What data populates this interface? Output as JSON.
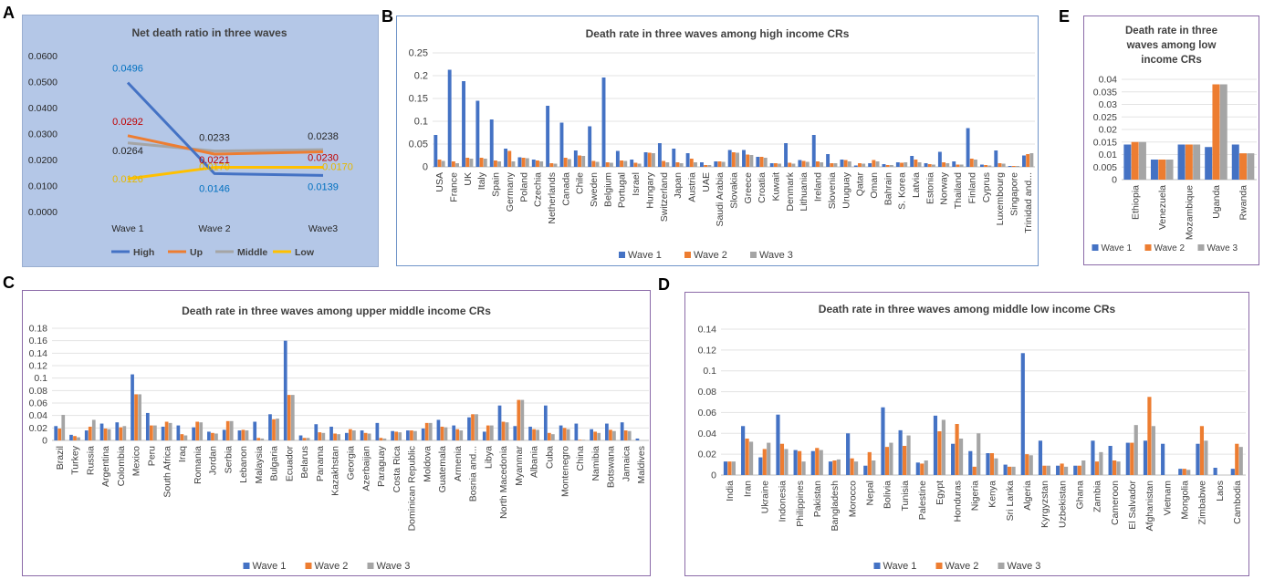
{
  "panels": {
    "A": {
      "letter": "A"
    },
    "B": {
      "letter": "B"
    },
    "C": {
      "letter": "C"
    },
    "D": {
      "letter": "D"
    },
    "E": {
      "letter": "E"
    }
  },
  "colors": {
    "wave1": "#4472C4",
    "wave2": "#ED7D31",
    "wave3": "#A5A5A5",
    "high": "#4472C4",
    "up": "#ED7D31",
    "middle": "#A5A5A5",
    "low": "#FFC000",
    "panelA_bg": "#B4C7E7",
    "label_blue": "#0070C0",
    "label_red": "#C00000",
    "label_black": "#262626",
    "label_gold": "#E5B800"
  },
  "chart_data": [
    {
      "id": "A",
      "type": "line",
      "title": "Net death ratio in three waves",
      "categories": [
        "Wave 1",
        "Wave 2",
        "Wave3"
      ],
      "ylim": [
        0,
        0.06
      ],
      "yticks": [
        "0.0000",
        "0.0100",
        "0.0200",
        "0.0300",
        "0.0400",
        "0.0500",
        "0.0600"
      ],
      "legend_position": "bottom",
      "series": [
        {
          "name": "High",
          "values": [
            0.0496,
            0.0146,
            0.0139
          ],
          "labels": [
            "0.0496",
            "0.0146",
            "0.0139"
          ]
        },
        {
          "name": "Up",
          "values": [
            0.0292,
            0.0221,
            0.023
          ],
          "labels": [
            "0.0292",
            "0.0221",
            "0.0230"
          ]
        },
        {
          "name": "Middle",
          "values": [
            0.0264,
            0.0233,
            0.0238
          ],
          "labels": [
            "0.0264",
            "0.0233",
            "0.0238"
          ]
        },
        {
          "name": "Low",
          "values": [
            0.0126,
            0.017,
            0.017
          ],
          "labels": [
            "0.0126",
            "0.0170",
            "0.0170"
          ]
        }
      ]
    },
    {
      "id": "B",
      "type": "bar",
      "title": "Death rate in three waves among high income CRs",
      "ylim": [
        0,
        0.25
      ],
      "yticks": [
        "0",
        "0.05",
        "0.1",
        "0.15",
        "0.2",
        "0.25"
      ],
      "legend_position": "bottom",
      "categories": [
        "USA",
        "France",
        "UK",
        "Italy",
        "Spain",
        "Germany",
        "Poland",
        "Czechia",
        "Netherlands",
        "Canada",
        "Chile",
        "Sweden",
        "Belgium",
        "Portugal",
        "Israel",
        "Hungary",
        "Switzerland",
        "Japan",
        "Austria",
        "UAE",
        "Saudi Arabia",
        "Slovakia",
        "Greece",
        "Croatia",
        "Kuwait",
        "Denmark",
        "Lithuania",
        "Ireland",
        "Slovenia",
        "Uruguay",
        "Qatar",
        "Oman",
        "Bahrain",
        "S. Korea",
        "Latvia",
        "Estonia",
        "Norway",
        "Thailand",
        "Finland",
        "Cyprus",
        "Luxembourg",
        "Singapore",
        "Trinidad and..."
      ],
      "series": [
        {
          "name": "Wave 1",
          "values": [
            0.07,
            0.213,
            0.188,
            0.145,
            0.104,
            0.04,
            0.021,
            0.016,
            0.134,
            0.097,
            0.036,
            0.089,
            0.196,
            0.035,
            0.016,
            0.032,
            0.052,
            0.04,
            0.03,
            0.01,
            0.012,
            0.037,
            0.037,
            0.022,
            0.008,
            0.052,
            0.015,
            0.07,
            0.028,
            0.016,
            0.003,
            0.008,
            0.006,
            0.01,
            0.024,
            0.008,
            0.033,
            0.012,
            0.085,
            0.005,
            0.036,
            0.002,
            0.025
          ]
        },
        {
          "name": "Wave 2",
          "values": [
            0.016,
            0.012,
            0.02,
            0.02,
            0.014,
            0.035,
            0.02,
            0.014,
            0.008,
            0.02,
            0.025,
            0.013,
            0.01,
            0.014,
            0.009,
            0.031,
            0.013,
            0.01,
            0.018,
            0.004,
            0.012,
            0.032,
            0.027,
            0.022,
            0.008,
            0.009,
            0.013,
            0.012,
            0.008,
            0.015,
            0.008,
            0.015,
            0.004,
            0.009,
            0.016,
            0.006,
            0.01,
            0.005,
            0.018,
            0.004,
            0.008,
            0.002,
            0.028
          ]
        },
        {
          "name": "Wave 3",
          "values": [
            0.013,
            0.008,
            0.018,
            0.018,
            0.012,
            0.012,
            0.019,
            0.012,
            0.007,
            0.017,
            0.024,
            0.011,
            0.009,
            0.013,
            0.007,
            0.03,
            0.01,
            0.008,
            0.01,
            0.004,
            0.011,
            0.031,
            0.026,
            0.02,
            0.007,
            0.007,
            0.011,
            0.01,
            0.008,
            0.012,
            0.007,
            0.012,
            0.004,
            0.01,
            0.01,
            0.005,
            0.008,
            0.005,
            0.016,
            0.003,
            0.007,
            0.002,
            0.03
          ]
        }
      ]
    },
    {
      "id": "C",
      "type": "bar",
      "title": "Death rate in three waves among upper middle income CRs",
      "ylim": [
        0,
        0.18
      ],
      "yticks": [
        "0",
        "0.02",
        "0.04",
        "0.06",
        "0.08",
        "0.1",
        "0.12",
        "0.14",
        "0.16",
        "0.18"
      ],
      "legend_position": "bottom",
      "categories": [
        "Brazil",
        "Turkey",
        "Russia",
        "Argentina",
        "Colombia",
        "Mexico",
        "Peru",
        "South Africa",
        "Iraq",
        "Romania",
        "Jordan",
        "Serbia",
        "Lebanon",
        "Malaysia",
        "Bulgaria",
        "Ecuador",
        "Belarus",
        "Panama",
        "Kazakhstan",
        "Georgia",
        "Azerbaijan",
        "Paraguay",
        "Costa Rica",
        "Dominican Republic",
        "Moldova",
        "Guatemala",
        "Armenia",
        "Bosnia and...",
        "Libya",
        "North Macedonia",
        "Myanmar",
        "Albania",
        "Cuba",
        "Montenegro",
        "China",
        "Namibia",
        "Botswana",
        "Jamaica",
        "Maldives"
      ],
      "series": [
        {
          "name": "Wave 1",
          "values": [
            0.023,
            0.009,
            0.016,
            0.027,
            0.029,
            0.106,
            0.044,
            0.022,
            0.024,
            0.021,
            0.014,
            0.017,
            0.016,
            0.03,
            0.042,
            0.16,
            0.008,
            0.026,
            0.022,
            0.012,
            0.016,
            0.028,
            0.015,
            0.016,
            0.019,
            0.033,
            0.024,
            0.037,
            0.014,
            0.056,
            0.023,
            0.022,
            0.056,
            0.024,
            0.027,
            0.018,
            0.027,
            0.029,
            0.003
          ]
        },
        {
          "name": "Wave 2",
          "values": [
            0.019,
            0.007,
            0.022,
            0.019,
            0.021,
            0.074,
            0.024,
            0.03,
            0.01,
            0.03,
            0.012,
            0.031,
            0.017,
            0.004,
            0.034,
            0.073,
            0.004,
            0.013,
            0.011,
            0.018,
            0.012,
            0.004,
            0.014,
            0.016,
            0.028,
            0.022,
            0.018,
            0.042,
            0.024,
            0.03,
            0.065,
            0.018,
            0.012,
            0.02,
            0.001,
            0.014,
            0.017,
            0.016,
            0.0
          ]
        },
        {
          "name": "Wave 3",
          "values": [
            0.041,
            0.005,
            0.033,
            0.018,
            0.023,
            0.074,
            0.024,
            0.028,
            0.008,
            0.029,
            0.011,
            0.031,
            0.016,
            0.003,
            0.035,
            0.073,
            0.004,
            0.012,
            0.01,
            0.016,
            0.011,
            0.003,
            0.013,
            0.015,
            0.028,
            0.021,
            0.016,
            0.042,
            0.024,
            0.029,
            0.065,
            0.017,
            0.01,
            0.018,
            0.001,
            0.012,
            0.015,
            0.015,
            0.0
          ]
        }
      ]
    },
    {
      "id": "D",
      "type": "bar",
      "title": "Death rate in three waves among middle low income CRs",
      "ylim": [
        0,
        0.14
      ],
      "yticks": [
        "0",
        "0.02",
        "0.04",
        "0.06",
        "0.08",
        "0.1",
        "0.12",
        "0.14"
      ],
      "legend_position": "bottom",
      "categories": [
        "India",
        "Iran",
        "Ukraine",
        "Indonesia",
        "Philippines",
        "Pakistan",
        "Bangladesh",
        "Morocco",
        "Nepal",
        "Bolivia",
        "Tunisia",
        "Palestine",
        "Egypt",
        "Honduras",
        "Nigeria",
        "Kenya",
        "Sri Lanka",
        "Algeria",
        "Kyrgyzstan",
        "Uzbekistan",
        "Ghana",
        "Zambia",
        "Cameroon",
        "El Salvador",
        "Afghanistan",
        "Vietnam",
        "Mongolia",
        "Zimbabwe",
        "Laos",
        "Cambodia"
      ],
      "series": [
        {
          "name": "Wave 1",
          "values": [
            0.013,
            0.047,
            0.017,
            0.058,
            0.024,
            0.023,
            0.013,
            0.04,
            0.009,
            0.065,
            0.043,
            0.012,
            0.057,
            0.03,
            0.023,
            0.021,
            0.01,
            0.117,
            0.033,
            0.009,
            0.009,
            0.033,
            0.028,
            0.031,
            0.033,
            0.03,
            0.006,
            0.03,
            0.007,
            0.006
          ]
        },
        {
          "name": "Wave 2",
          "values": [
            0.013,
            0.035,
            0.025,
            0.03,
            0.023,
            0.026,
            0.014,
            0.016,
            0.022,
            0.027,
            0.028,
            0.011,
            0.042,
            0.049,
            0.008,
            0.021,
            0.008,
            0.02,
            0.009,
            0.011,
            0.009,
            0.013,
            0.014,
            0.031,
            0.075,
            0.0,
            0.006,
            0.047,
            0.0,
            0.03
          ]
        },
        {
          "name": "Wave 3",
          "values": [
            0.013,
            0.032,
            0.031,
            0.025,
            0.013,
            0.024,
            0.015,
            0.013,
            0.014,
            0.031,
            0.038,
            0.014,
            0.053,
            0.035,
            0.04,
            0.016,
            0.008,
            0.019,
            0.009,
            0.008,
            0.014,
            0.022,
            0.013,
            0.048,
            0.047,
            0.0,
            0.005,
            0.033,
            0.0,
            0.027
          ]
        }
      ]
    },
    {
      "id": "E",
      "type": "bar",
      "title": "Death rate in three waves among low income CRs",
      "title_lines": [
        "Death rate in three",
        "waves among low",
        "income CRs"
      ],
      "ylim": [
        0,
        0.04
      ],
      "yticks": [
        "0",
        "0.005",
        "0.01",
        "0.015",
        "0.02",
        "0.025",
        "0.03",
        "0.035",
        "0.04"
      ],
      "legend_position": "bottom",
      "categories": [
        "Ethiopia",
        "Venezuela",
        "Mozambique",
        "Uganda",
        "Rwanda"
      ],
      "series": [
        {
          "name": "Wave 1",
          "values": [
            0.014,
            0.008,
            0.014,
            0.013,
            0.014
          ]
        },
        {
          "name": "Wave 2",
          "values": [
            0.015,
            0.008,
            0.014,
            0.038,
            0.0105
          ]
        },
        {
          "name": "Wave 3",
          "values": [
            0.015,
            0.008,
            0.014,
            0.038,
            0.0105
          ]
        }
      ]
    }
  ]
}
